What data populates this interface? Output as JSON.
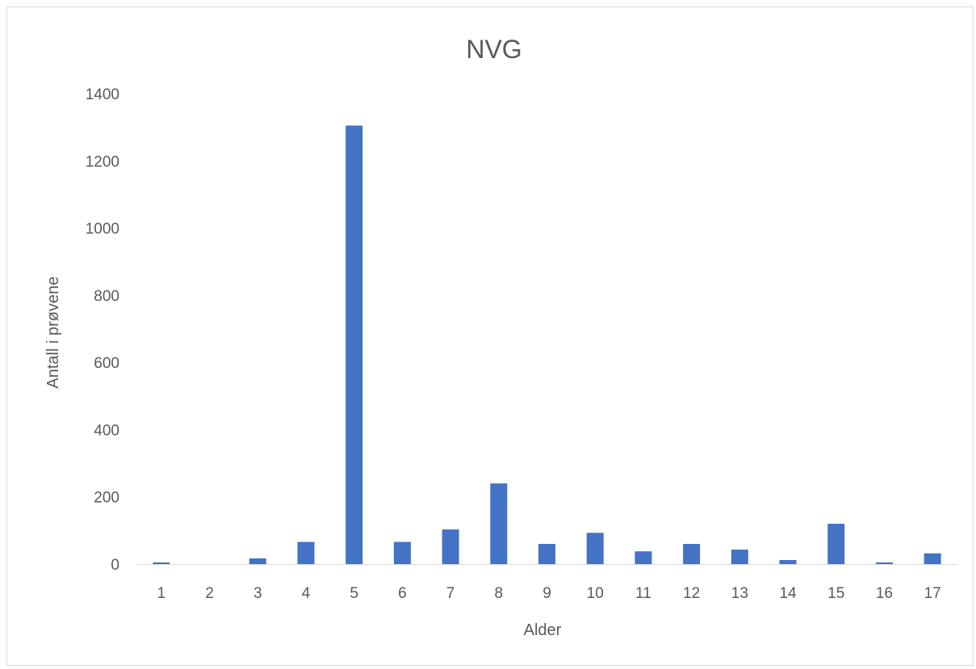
{
  "chart_data": {
    "type": "bar",
    "title": "NVG",
    "xlabel": "Alder",
    "ylabel": "Antall i prøvene",
    "categories": [
      "1",
      "2",
      "3",
      "4",
      "5",
      "6",
      "7",
      "8",
      "9",
      "10",
      "11",
      "12",
      "13",
      "14",
      "15",
      "16",
      "17"
    ],
    "series": [
      {
        "values": [
          5,
          0,
          17,
          66,
          1305,
          66,
          103,
          240,
          60,
          93,
          38,
          60,
          43,
          12,
          120,
          5,
          32
        ],
        "color": "#4472C4"
      }
    ],
    "ylim": [
      0,
      1400
    ],
    "yticks": [
      "0",
      "200",
      "400",
      "600",
      "800",
      "1000",
      "1200",
      "1400"
    ],
    "grid": false,
    "legend": "none"
  }
}
